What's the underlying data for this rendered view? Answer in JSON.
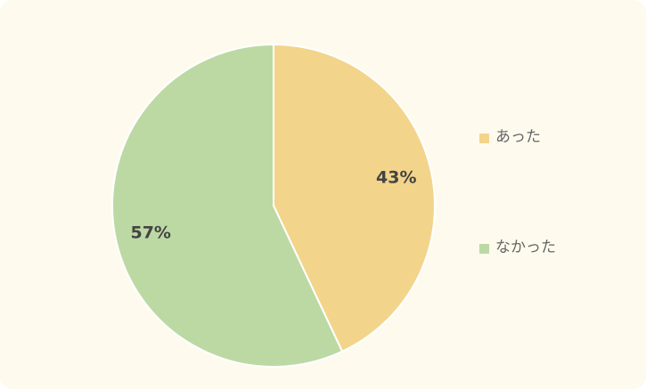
{
  "chart_data": {
    "type": "pie",
    "categories": [
      "あった",
      "なかった"
    ],
    "values": [
      43,
      57
    ],
    "value_labels": [
      "43%",
      "57%"
    ],
    "colors": [
      "#f2d48b",
      "#bcd9a4"
    ],
    "legend": "right"
  }
}
